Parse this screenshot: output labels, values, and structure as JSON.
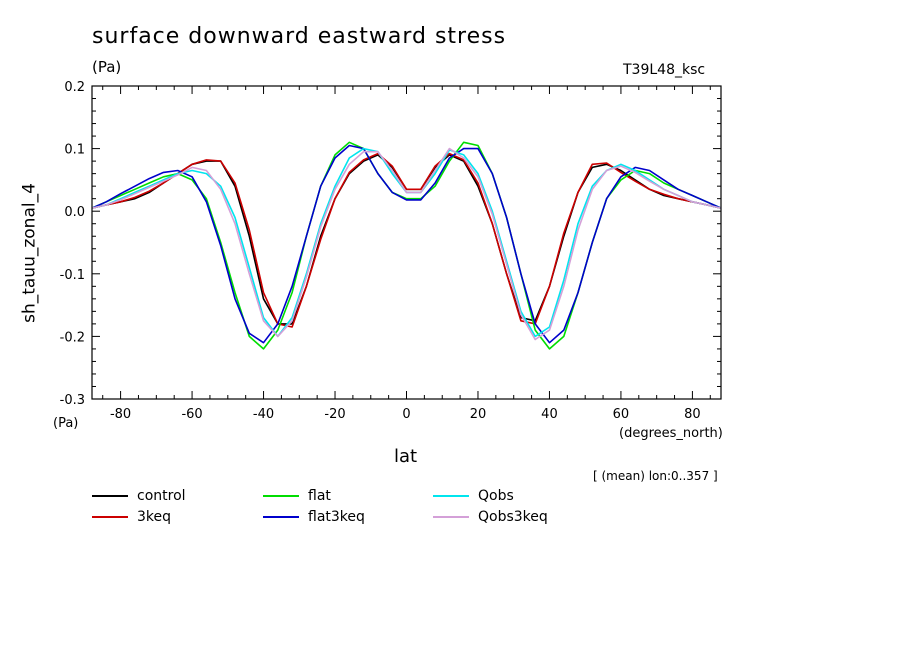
{
  "header": {
    "title": "surface downward eastward stress",
    "units_top": "(Pa)",
    "run_label": "T39L48_ksc"
  },
  "axes": {
    "ylabel": "sh_tauu_zonal_4",
    "units_bottom": "(Pa)",
    "xlabel": "lat",
    "x_units": "(degrees_north)",
    "mean_note": "[ (mean) lon:0..357 ]"
  },
  "chart_data": {
    "type": "line",
    "title": "surface downward eastward stress",
    "xlabel": "lat",
    "ylabel": "sh_tauu_zonal_4",
    "xlim": [
      -88,
      88
    ],
    "ylim": [
      -0.3,
      0.2
    ],
    "xticks": [
      -80,
      -60,
      -40,
      -20,
      0,
      20,
      40,
      60,
      80
    ],
    "yticks": [
      -0.3,
      -0.2,
      -0.1,
      0.0,
      0.1,
      0.2
    ],
    "ytick_labels": [
      "-0.3",
      "-0.2",
      "-0.1",
      "0.0",
      "0.1",
      "0.2"
    ],
    "grid": false,
    "legend_position": "bottom",
    "x": [
      -88,
      -84,
      -80,
      -76,
      -72,
      -68,
      -64,
      -60,
      -56,
      -52,
      -48,
      -44,
      -40,
      -36,
      -32,
      -28,
      -24,
      -20,
      -16,
      -12,
      -8,
      -4,
      0,
      4,
      8,
      12,
      16,
      20,
      24,
      28,
      32,
      36,
      40,
      44,
      48,
      52,
      56,
      60,
      64,
      68,
      72,
      76,
      80,
      84,
      88
    ],
    "series": [
      {
        "name": "control",
        "color": "#000000",
        "values": [
          0.005,
          0.01,
          0.015,
          0.02,
          0.03,
          0.045,
          0.06,
          0.075,
          0.08,
          0.08,
          0.04,
          -0.04,
          -0.14,
          -0.18,
          -0.18,
          -0.12,
          -0.04,
          0.02,
          0.06,
          0.08,
          0.09,
          0.07,
          0.035,
          0.035,
          0.07,
          0.09,
          0.08,
          0.04,
          -0.02,
          -0.1,
          -0.17,
          -0.175,
          -0.12,
          -0.04,
          0.03,
          0.07,
          0.075,
          0.065,
          0.05,
          0.035,
          0.025,
          0.02,
          0.015,
          0.01,
          0.005
        ]
      },
      {
        "name": "3keq",
        "color": "#cc0000",
        "values": [
          0.005,
          0.01,
          0.015,
          0.022,
          0.032,
          0.045,
          0.06,
          0.075,
          0.082,
          0.08,
          0.045,
          -0.03,
          -0.13,
          -0.18,
          -0.185,
          -0.12,
          -0.045,
          0.02,
          0.062,
          0.082,
          0.092,
          0.072,
          0.035,
          0.035,
          0.072,
          0.092,
          0.082,
          0.045,
          -0.02,
          -0.1,
          -0.175,
          -0.18,
          -0.12,
          -0.035,
          0.03,
          0.075,
          0.077,
          0.062,
          0.048,
          0.035,
          0.027,
          0.02,
          0.015,
          0.01,
          0.005
        ]
      },
      {
        "name": "flat",
        "color": "#00dd00",
        "values": [
          0.005,
          0.015,
          0.025,
          0.035,
          0.045,
          0.055,
          0.06,
          0.05,
          0.02,
          -0.05,
          -0.13,
          -0.2,
          -0.22,
          -0.19,
          -0.13,
          -0.04,
          0.04,
          0.09,
          0.11,
          0.1,
          0.06,
          0.03,
          0.02,
          0.02,
          0.04,
          0.08,
          0.11,
          0.105,
          0.06,
          -0.01,
          -0.1,
          -0.19,
          -0.22,
          -0.2,
          -0.13,
          -0.05,
          0.02,
          0.05,
          0.065,
          0.06,
          0.045,
          0.035,
          0.025,
          0.015,
          0.005
        ]
      },
      {
        "name": "flat3keq",
        "color": "#0000cc",
        "values": [
          0.005,
          0.015,
          0.028,
          0.04,
          0.052,
          0.062,
          0.065,
          0.055,
          0.015,
          -0.055,
          -0.14,
          -0.195,
          -0.21,
          -0.18,
          -0.12,
          -0.04,
          0.04,
          0.085,
          0.105,
          0.1,
          0.06,
          0.03,
          0.018,
          0.018,
          0.045,
          0.085,
          0.1,
          0.1,
          0.06,
          -0.01,
          -0.1,
          -0.18,
          -0.21,
          -0.19,
          -0.13,
          -0.05,
          0.02,
          0.055,
          0.07,
          0.065,
          0.05,
          0.035,
          0.025,
          0.015,
          0.005
        ]
      },
      {
        "name": "Qobs",
        "color": "#00e5ee",
        "values": [
          0.005,
          0.01,
          0.02,
          0.03,
          0.04,
          0.05,
          0.06,
          0.065,
          0.06,
          0.04,
          -0.01,
          -0.09,
          -0.17,
          -0.2,
          -0.17,
          -0.1,
          -0.02,
          0.04,
          0.085,
          0.1,
          0.095,
          0.06,
          0.03,
          0.03,
          0.06,
          0.098,
          0.09,
          0.06,
          0.0,
          -0.08,
          -0.16,
          -0.2,
          -0.185,
          -0.11,
          -0.02,
          0.04,
          0.065,
          0.075,
          0.065,
          0.05,
          0.035,
          0.025,
          0.015,
          0.01,
          0.005
        ]
      },
      {
        "name": "Qobs3keq",
        "color": "#d4a0d8",
        "values": [
          0.005,
          0.01,
          0.018,
          0.028,
          0.038,
          0.048,
          0.058,
          0.07,
          0.065,
          0.035,
          -0.02,
          -0.1,
          -0.175,
          -0.2,
          -0.175,
          -0.105,
          -0.025,
          0.035,
          0.075,
          0.095,
          0.095,
          0.065,
          0.03,
          0.03,
          0.065,
          0.1,
          0.085,
          0.055,
          -0.005,
          -0.085,
          -0.165,
          -0.205,
          -0.19,
          -0.12,
          -0.03,
          0.035,
          0.065,
          0.072,
          0.062,
          0.048,
          0.035,
          0.025,
          0.015,
          0.01,
          0.005
        ]
      }
    ]
  }
}
